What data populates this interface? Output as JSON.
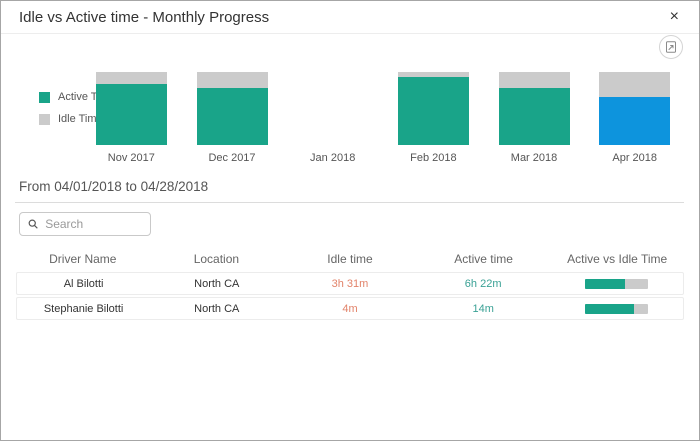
{
  "header": {
    "title": "Idle vs Active time - Monthly Progress",
    "close_icon": "×"
  },
  "chart_data": {
    "type": "bar",
    "variant": "100%-stacked",
    "categories": [
      "Nov 2017",
      "Dec 2017",
      "Jan 2018",
      "Feb 2018",
      "Mar 2018",
      "Apr 2018"
    ],
    "series": [
      {
        "name": "Active Time",
        "color": "#19a489",
        "values": [
          84,
          78,
          0,
          93,
          78,
          66
        ]
      },
      {
        "name": "Idle Time",
        "color": "#cbcbcb",
        "values": [
          16,
          22,
          0,
          7,
          22,
          34
        ]
      }
    ],
    "highlighted_category": "Apr 2018",
    "highlight_color": "#0d94dd",
    "legend_position": "left",
    "grid": "off",
    "ylim": [
      0,
      100
    ]
  },
  "date_range": {
    "label": "From 04/01/2018 to 04/28/2018"
  },
  "search": {
    "placeholder": "Search",
    "value": ""
  },
  "table": {
    "columns": [
      "Driver Name",
      "Location",
      "Idle time",
      "Active time",
      "Active vs Idle Time"
    ],
    "rows": [
      {
        "driver": "Al Bilotti",
        "location": "North CA",
        "idle": "3h 31m",
        "active": "6h 22m",
        "active_pct": 64
      },
      {
        "driver": "Stephanie Bilotti",
        "location": "North CA",
        "idle": "4m",
        "active": "14m",
        "active_pct": 78
      }
    ]
  },
  "icons": {
    "export": "export-image-icon",
    "search": "search-icon",
    "close": "close-icon"
  },
  "colors": {
    "active_teal": "#19a489",
    "idle_gray": "#cbcbcb",
    "selected_blue": "#0d94dd",
    "idle_text_orange": "#e2836a",
    "active_text_teal": "#3aa195"
  }
}
